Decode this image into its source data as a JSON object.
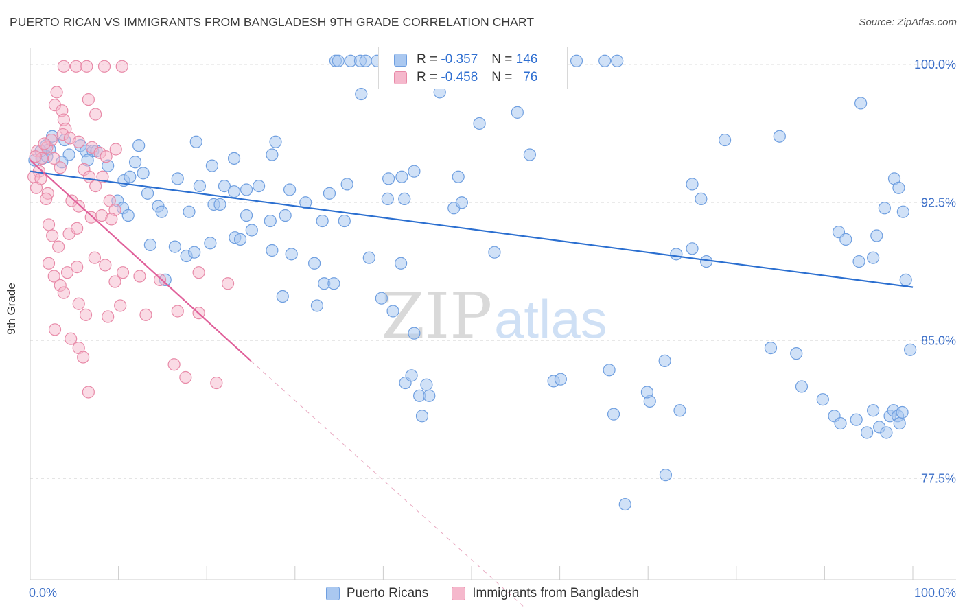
{
  "title": "PUERTO RICAN VS IMMIGRANTS FROM BANGLADESH 9TH GRADE CORRELATION CHART",
  "source": "Source: ZipAtlas.com",
  "watermark": {
    "zip": "ZIP",
    "atlas": "atlas"
  },
  "colors": {
    "blue_fill": "#aac8f0",
    "blue_stroke": "#6f9fe0",
    "blue_line": "#2b6fd0",
    "pink_fill": "#f5b8cc",
    "pink_stroke": "#e88aa8",
    "pink_line": "#e0609a",
    "axis_text": "#3c6fc8",
    "grid": "#e4e4e4"
  },
  "legend": {
    "rows": [
      {
        "r_label": "R =",
        "r_value": "-0.357",
        "n_label": "N =",
        "n_value": "146"
      },
      {
        "r_label": "R =",
        "r_value": "-0.458",
        "n_label": "N =",
        "n_value": "76"
      }
    ]
  },
  "bottom_legend": [
    "Puerto Ricans",
    "Immigrants from Bangladesh"
  ],
  "chart_data": {
    "type": "scatter",
    "xlabel": "",
    "ylabel": "9th Grade",
    "xlim": [
      0,
      100
    ],
    "ylim": [
      72,
      100.9
    ],
    "x_tick_labels": [
      "0.0%",
      "100.0%"
    ],
    "y_ticks": [
      {
        "value": 100.0,
        "label": "100.0%"
      },
      {
        "value": 92.5,
        "label": "92.5%"
      },
      {
        "value": 85.0,
        "label": "85.0%"
      },
      {
        "value": 77.5,
        "label": "77.5%"
      }
    ],
    "grid": "horizontal dashed",
    "series": [
      {
        "name": "Puerto Ricans",
        "trend": [
          [
            0,
            94.2
          ],
          [
            100,
            87.9
          ]
        ],
        "points": [
          [
            34.6,
            100.2
          ],
          [
            34.9,
            100.2
          ],
          [
            36.3,
            100.2
          ],
          [
            37.4,
            100.2
          ],
          [
            38.0,
            100.2
          ],
          [
            39.3,
            100.2
          ],
          [
            40.7,
            100.2
          ],
          [
            42.0,
            100.2
          ],
          [
            43.1,
            100.2
          ],
          [
            44.6,
            100.2
          ],
          [
            45.8,
            100.2
          ],
          [
            47.0,
            100.2
          ],
          [
            48.2,
            100.2
          ],
          [
            49.3,
            100.2
          ],
          [
            51.2,
            100.2
          ],
          [
            52.4,
            100.2
          ],
          [
            53.3,
            100.2
          ],
          [
            54.5,
            100.2
          ],
          [
            55.6,
            100.2
          ],
          [
            56.3,
            100.2
          ],
          [
            61.9,
            100.2
          ],
          [
            65.1,
            100.2
          ],
          [
            66.5,
            100.2
          ],
          [
            37.5,
            98.4
          ],
          [
            46.4,
            98.5
          ],
          [
            55.2,
            97.4
          ],
          [
            50.9,
            96.8
          ],
          [
            84.9,
            96.1
          ],
          [
            94.1,
            97.9
          ],
          [
            78.7,
            95.9
          ],
          [
            1.8,
            95.6
          ],
          [
            2.2,
            95.4
          ],
          [
            2.5,
            96.1
          ],
          [
            3.9,
            95.9
          ],
          [
            4.4,
            95.1
          ],
          [
            5.7,
            95.6
          ],
          [
            6.3,
            95.3
          ],
          [
            7.1,
            95.3
          ],
          [
            7.5,
            95.3
          ],
          [
            6.5,
            94.8
          ],
          [
            3.6,
            94.7
          ],
          [
            1.4,
            94.9
          ],
          [
            1.9,
            95.0
          ],
          [
            1.2,
            95.3
          ],
          [
            0.5,
            94.8
          ],
          [
            12.3,
            95.6
          ],
          [
            18.8,
            95.8
          ],
          [
            27.8,
            95.8
          ],
          [
            27.4,
            95.1
          ],
          [
            23.1,
            94.9
          ],
          [
            20.6,
            94.5
          ],
          [
            8.8,
            94.5
          ],
          [
            11.9,
            94.7
          ],
          [
            10.6,
            93.7
          ],
          [
            11.3,
            93.9
          ],
          [
            12.8,
            94.1
          ],
          [
            16.7,
            93.8
          ],
          [
            19.2,
            93.4
          ],
          [
            22.0,
            93.4
          ],
          [
            23.1,
            93.1
          ],
          [
            24.5,
            93.2
          ],
          [
            25.9,
            93.4
          ],
          [
            29.4,
            93.2
          ],
          [
            33.9,
            93.0
          ],
          [
            35.9,
            93.5
          ],
          [
            40.6,
            93.8
          ],
          [
            42.1,
            93.9
          ],
          [
            43.5,
            94.2
          ],
          [
            56.6,
            95.1
          ],
          [
            48.5,
            93.9
          ],
          [
            99.7,
            84.5
          ],
          [
            9.9,
            92.6
          ],
          [
            10.5,
            92.2
          ],
          [
            11.1,
            91.8
          ],
          [
            13.3,
            93.0
          ],
          [
            14.5,
            92.3
          ],
          [
            14.9,
            92.0
          ],
          [
            18.0,
            92.0
          ],
          [
            20.8,
            92.4
          ],
          [
            21.5,
            92.4
          ],
          [
            24.5,
            91.8
          ],
          [
            25.1,
            91.0
          ],
          [
            27.2,
            91.5
          ],
          [
            28.9,
            91.8
          ],
          [
            31.2,
            92.5
          ],
          [
            33.1,
            91.5
          ],
          [
            35.6,
            91.5
          ],
          [
            40.5,
            92.7
          ],
          [
            42.4,
            92.7
          ],
          [
            48.0,
            92.2
          ],
          [
            48.9,
            92.5
          ],
          [
            75.0,
            93.5
          ],
          [
            76.0,
            92.7
          ],
          [
            91.6,
            90.9
          ],
          [
            92.4,
            90.5
          ],
          [
            93.9,
            89.3
          ],
          [
            95.5,
            89.5
          ],
          [
            95.9,
            90.7
          ],
          [
            96.8,
            92.2
          ],
          [
            97.9,
            93.8
          ],
          [
            98.4,
            93.3
          ],
          [
            98.9,
            92.0
          ],
          [
            99.2,
            88.3
          ],
          [
            13.6,
            90.2
          ],
          [
            16.4,
            90.1
          ],
          [
            17.7,
            89.6
          ],
          [
            18.6,
            89.8
          ],
          [
            20.4,
            90.3
          ],
          [
            23.2,
            90.6
          ],
          [
            23.8,
            90.5
          ],
          [
            27.4,
            89.9
          ],
          [
            29.6,
            89.7
          ],
          [
            32.2,
            89.2
          ],
          [
            33.3,
            88.1
          ],
          [
            38.4,
            89.5
          ],
          [
            42.0,
            89.2
          ],
          [
            52.6,
            89.8
          ],
          [
            73.2,
            89.7
          ],
          [
            75.0,
            90.0
          ],
          [
            76.6,
            89.3
          ],
          [
            15.3,
            88.3
          ],
          [
            28.6,
            87.4
          ],
          [
            32.5,
            86.9
          ],
          [
            34.4,
            88.1
          ],
          [
            39.8,
            87.3
          ],
          [
            41.1,
            86.6
          ],
          [
            43.5,
            85.4
          ],
          [
            59.3,
            82.8
          ],
          [
            60.1,
            82.9
          ],
          [
            42.5,
            82.7
          ],
          [
            43.2,
            83.1
          ],
          [
            44.1,
            82.0
          ],
          [
            44.4,
            80.9
          ],
          [
            44.9,
            82.6
          ],
          [
            45.2,
            82.0
          ],
          [
            83.9,
            84.6
          ],
          [
            86.8,
            84.3
          ],
          [
            87.4,
            82.5
          ],
          [
            89.8,
            81.8
          ],
          [
            91.1,
            80.9
          ],
          [
            91.8,
            80.5
          ],
          [
            93.6,
            80.7
          ],
          [
            94.8,
            80.0
          ],
          [
            95.5,
            81.2
          ],
          [
            96.2,
            80.3
          ],
          [
            97.0,
            80.0
          ],
          [
            97.4,
            80.9
          ],
          [
            97.8,
            81.2
          ],
          [
            98.3,
            80.9
          ],
          [
            98.5,
            80.5
          ],
          [
            98.8,
            81.1
          ],
          [
            66.1,
            81.0
          ],
          [
            70.2,
            81.7
          ],
          [
            72.0,
            77.7
          ],
          [
            67.4,
            76.1
          ],
          [
            69.9,
            82.2
          ],
          [
            65.6,
            83.4
          ],
          [
            71.9,
            83.9
          ],
          [
            73.6,
            81.2
          ]
        ]
      },
      {
        "name": "Immigrants from Bangladesh",
        "trend": [
          [
            0,
            94.8
          ],
          [
            25,
            83.9
          ]
        ],
        "trend_dashed": [
          [
            25,
            83.9
          ],
          [
            56,
            70.5
          ]
        ],
        "points": [
          [
            0.8,
            95.3
          ],
          [
            1.3,
            94.9
          ],
          [
            1.9,
            95.5
          ],
          [
            0.6,
            95.0
          ],
          [
            2.4,
            95.9
          ],
          [
            1.6,
            95.7
          ],
          [
            2.7,
            94.9
          ],
          [
            1.0,
            94.2
          ],
          [
            0.4,
            93.9
          ],
          [
            1.2,
            93.8
          ],
          [
            0.7,
            93.3
          ],
          [
            2.0,
            93.0
          ],
          [
            1.8,
            92.7
          ],
          [
            3.4,
            94.4
          ],
          [
            3.8,
            99.9
          ],
          [
            5.2,
            99.9
          ],
          [
            6.4,
            99.9
          ],
          [
            8.4,
            99.9
          ],
          [
            10.4,
            99.9
          ],
          [
            3.0,
            98.5
          ],
          [
            2.8,
            97.8
          ],
          [
            3.6,
            97.5
          ],
          [
            3.8,
            97.0
          ],
          [
            4.0,
            96.5
          ],
          [
            3.7,
            96.2
          ],
          [
            4.5,
            96.0
          ],
          [
            5.5,
            95.8
          ],
          [
            6.6,
            98.1
          ],
          [
            7.4,
            97.3
          ],
          [
            7.0,
            95.5
          ],
          [
            7.9,
            95.2
          ],
          [
            8.6,
            95.0
          ],
          [
            9.7,
            95.4
          ],
          [
            6.1,
            94.3
          ],
          [
            6.7,
            93.9
          ],
          [
            7.4,
            93.4
          ],
          [
            8.2,
            93.9
          ],
          [
            9.0,
            92.6
          ],
          [
            9.6,
            92.1
          ],
          [
            4.7,
            92.6
          ],
          [
            5.5,
            92.3
          ],
          [
            2.1,
            91.3
          ],
          [
            2.5,
            90.7
          ],
          [
            3.2,
            90.1
          ],
          [
            4.4,
            90.8
          ],
          [
            5.3,
            91.1
          ],
          [
            6.9,
            91.7
          ],
          [
            8.1,
            91.8
          ],
          [
            9.2,
            91.6
          ],
          [
            2.1,
            89.2
          ],
          [
            2.7,
            88.5
          ],
          [
            3.4,
            88.0
          ],
          [
            4.2,
            88.7
          ],
          [
            5.3,
            89.0
          ],
          [
            7.3,
            89.5
          ],
          [
            8.5,
            89.1
          ],
          [
            9.6,
            88.2
          ],
          [
            10.5,
            88.7
          ],
          [
            12.4,
            88.5
          ],
          [
            14.7,
            88.3
          ],
          [
            19.1,
            88.7
          ],
          [
            22.4,
            88.1
          ],
          [
            3.8,
            87.6
          ],
          [
            5.5,
            87.0
          ],
          [
            6.3,
            86.4
          ],
          [
            8.8,
            86.3
          ],
          [
            10.2,
            86.9
          ],
          [
            13.1,
            86.4
          ],
          [
            16.7,
            86.6
          ],
          [
            19.1,
            86.5
          ],
          [
            2.8,
            85.6
          ],
          [
            4.6,
            85.1
          ],
          [
            5.5,
            84.6
          ],
          [
            6.0,
            84.1
          ],
          [
            16.3,
            83.7
          ],
          [
            17.6,
            83.0
          ],
          [
            21.1,
            82.7
          ],
          [
            6.6,
            82.2
          ]
        ]
      }
    ]
  }
}
